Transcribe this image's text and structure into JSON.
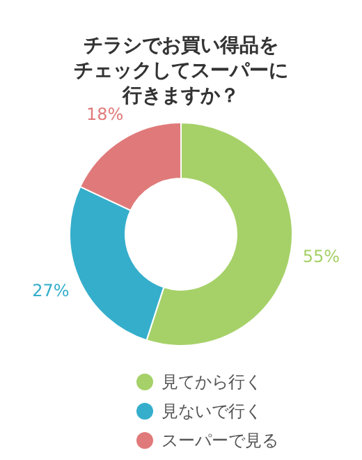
{
  "chart_data": {
    "type": "donut",
    "title": "チラシでお買い得品をチェックしてスーパーに行きますか？",
    "categories": [
      "見てから行く",
      "見ないで行く",
      "スーパーで見る"
    ],
    "values": [
      55,
      27,
      18
    ],
    "colors": [
      "#a6d169",
      "#35aecb",
      "#e07a7a"
    ],
    "value_labels": [
      "55%",
      "27%",
      "18%"
    ],
    "legend": "bottom"
  }
}
